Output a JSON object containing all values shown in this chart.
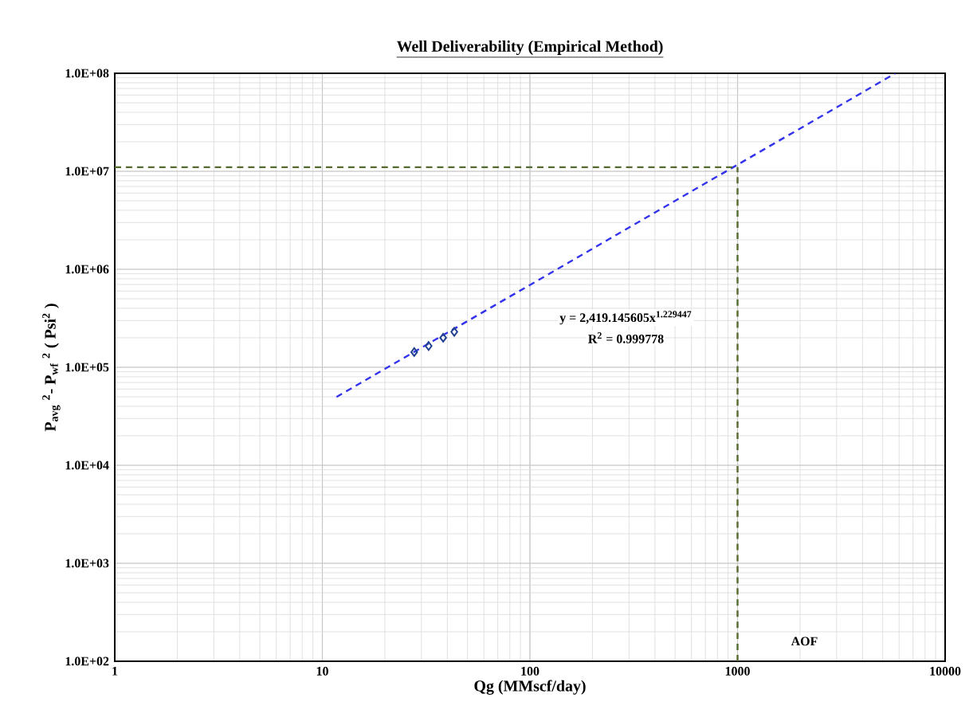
{
  "chart_data": {
    "type": "scatter",
    "title": "Well Deliverability (Empirical Method)",
    "xlabel": "Qg (MMscf/day)",
    "ylabel": "P$_{avg}$ $^{2}$- P$_{wf}$ $^{2}$ ( Psi$^{2}$ )",
    "log": "xy",
    "grid": true,
    "xlim": [
      1,
      10000
    ],
    "ylim": [
      100,
      100000000
    ],
    "xticks": [
      1,
      10,
      100,
      1000,
      10000
    ],
    "yticks": [
      {
        "value": 100,
        "label": "1.0E+02"
      },
      {
        "value": 1000,
        "label": "1.0E+03"
      },
      {
        "value": 10000,
        "label": "1.0E+04"
      },
      {
        "value": 100000,
        "label": "1.0E+05"
      },
      {
        "value": 1000000,
        "label": "1.0E+06"
      },
      {
        "value": 10000000,
        "label": "1.0E+07"
      },
      {
        "value": 100000000,
        "label": "1.0E+08"
      }
    ],
    "series": [
      {
        "color": "#1f3f8f",
        "marker": "diamond",
        "x": [
          27.7,
          32.5,
          38.2,
          43.2
        ],
        "values": [
          143000,
          165000,
          200000,
          230000
        ]
      },
      {
        "type": "line",
        "color": "#3333ee",
        "line_style": "dashed",
        "marker": "none",
        "x": [
          11.7,
          5760
        ],
        "values": [
          49800,
          100000000
        ]
      },
      {
        "type": "line",
        "color": "#556b2f",
        "line_style": "dashed",
        "marker": "none",
        "x": [
          1,
          1000
        ],
        "values": [
          11000000,
          11000000
        ]
      },
      {
        "type": "line",
        "color": "#556b2f",
        "line_style": "dashed",
        "marker": "none",
        "x": [
          1000,
          1000
        ],
        "values": [
          100,
          11000000
        ]
      }
    ],
    "annotations": [
      "y = 2,419.145605x$^{1.229447}$",
      "R$^{2}$ = 0.999778",
      "AOF"
    ]
  }
}
